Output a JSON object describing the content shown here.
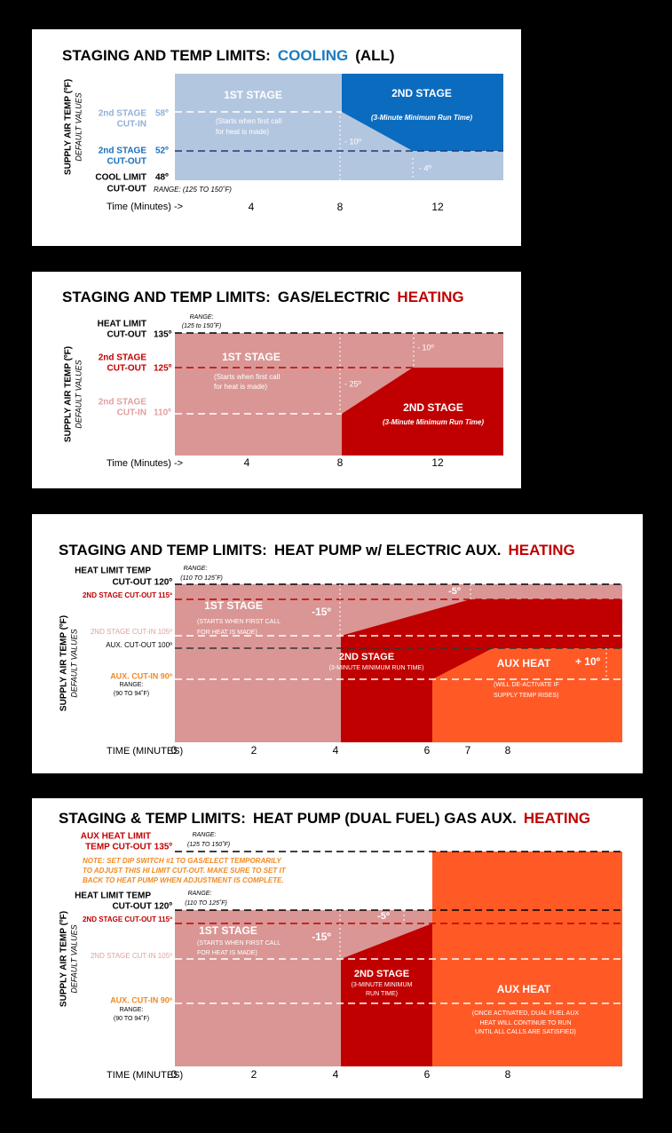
{
  "panels": [
    {
      "title": [
        "STAGING AND TEMP LIMITS:",
        "COOLING",
        "(ALL)"
      ],
      "y_axis_title": "SUPPLY AIR TEMP (ºF)",
      "y_axis_subtitle": "DEFAULT VALUES",
      "x_axis_label": "Time (Minutes) ->",
      "x_ticks": [
        "4",
        "8",
        "12"
      ],
      "labels": [
        "2nd STAGE",
        "CUT-IN",
        "58º",
        "2nd STAGE",
        "CUT-OUT",
        "52º",
        "COOL LIMIT",
        "CUT-OUT",
        "48º",
        "RANGE: (125 TO 150˚F)",
        "1ST STAGE",
        "(Starts when first call",
        "for heat is made)",
        "2ND STAGE",
        "(3-Minute Minimum Run Time)",
        "- 10º",
        "- 4º"
      ]
    },
    {
      "title": [
        "STAGING AND TEMP LIMITS:",
        "GAS/ELECTRIC",
        "HEATING"
      ],
      "y_axis_title": "SUPPLY AIR TEMP (ºF)",
      "y_axis_subtitle": "DEFAULT VALUES",
      "x_axis_label": "Time (Minutes) ->",
      "x_ticks": [
        "4",
        "8",
        "12"
      ],
      "labels": [
        "RANGE:",
        "(125 to 150˚F)",
        "HEAT LIMIT",
        "CUT-OUT",
        "135º",
        "2nd STAGE",
        "CUT-OUT",
        "125º",
        "2nd STAGE",
        "CUT-IN",
        "110º",
        "1ST STAGE",
        "(Starts when first call",
        "for heat is made)",
        "- 10º",
        "- 25º",
        "2ND STAGE",
        "(3-Minute Minimum Run Time)"
      ]
    },
    {
      "title": [
        "STAGING AND TEMP LIMITS:",
        "HEAT PUMP w/ ELECTRIC AUX.",
        "HEATING"
      ],
      "y_axis_title": "SUPPLY AIR TEMP (ºF)",
      "y_axis_subtitle": "DEFAULT VALUES",
      "x_axis_label": "TIME (MINUTES)",
      "x_ticks": [
        "0",
        "2",
        "4",
        "6",
        "7",
        "8"
      ],
      "labels": [
        "HEAT LIMIT TEMP",
        "CUT-OUT 120º",
        "RANGE:",
        "(110 TO 125˚F)",
        "2ND STAGE CUT-OUT 115º",
        "2ND STAGE CUT-IN 105º",
        "AUX. CUT-OUT 100º",
        "AUX. CUT-IN 90º",
        "RANGE:",
        "(90 TO 94˚F)",
        "1ST STAGE",
        "(STARTS WHEN FIRST CALL",
        "FOR HEAT IS MADE)",
        "-15º",
        "-5º",
        "2ND STAGE",
        "(3-MINUTE MINIMUM RUN TIME)",
        "AUX HEAT",
        "+ 10º",
        "(WILL DE-ACTIVATE IF",
        "SUPPLY TEMP RISES)"
      ]
    },
    {
      "title": [
        "STAGING & TEMP LIMITS:",
        "HEAT PUMP (DUAL FUEL) GAS AUX.",
        "HEATING"
      ],
      "y_axis_title": "SUPPLY AIR TEMP (ºF)",
      "y_axis_subtitle": "DEFAULT VALUES",
      "x_axis_label": "TIME (MINUTES)",
      "x_ticks": [
        "0",
        "2",
        "4",
        "6",
        "8"
      ],
      "labels": [
        "AUX HEAT LIMIT",
        "TEMP CUT-OUT 135º",
        "RANGE:",
        "(125 TO 150˚F)",
        "NOTE: SET DIP SWITCH #1 TO GAS/ELECT TEMPORARILY",
        "TO ADJUST THIS HI LIMIT CUT-OUT. MAKE SURE TO SET IT",
        "BACK TO HEAT PUMP WHEN ADJUSTMENT IS COMPLETE.",
        "HEAT LIMIT TEMP",
        "CUT-OUT 120º",
        "RANGE:",
        "(110 TO 125˚F)",
        "2ND STAGE CUT-OUT 115º",
        "2ND STAGE CUT-IN 105º",
        "AUX. CUT-IN 90º",
        "RANGE:",
        "(90 TO 94˚F)",
        "1ST STAGE",
        "(STARTS WHEN FIRST CALL",
        "FOR HEAT IS MADE)",
        "-15º",
        "-5º",
        "2ND STAGE",
        "(3-MINUTE MINIMUM",
        "RUN TIME)",
        "AUX HEAT",
        "(ONCE ACTIVATED, DUAL FUEL AUX",
        "HEAT WILL CONTINUE TO RUN",
        "UNTIL ALL CALLS ARE SATISFIED)"
      ]
    }
  ]
}
